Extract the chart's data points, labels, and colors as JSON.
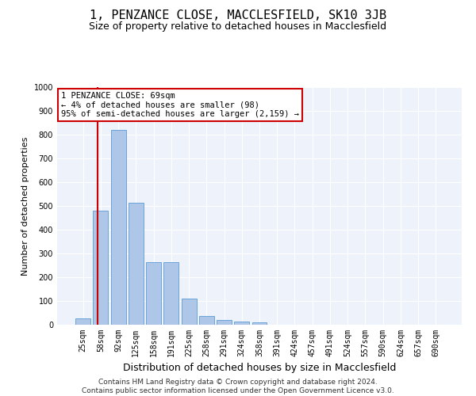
{
  "title": "1, PENZANCE CLOSE, MACCLESFIELD, SK10 3JB",
  "subtitle": "Size of property relative to detached houses in Macclesfield",
  "xlabel": "Distribution of detached houses by size in Macclesfield",
  "ylabel": "Number of detached properties",
  "footer_line1": "Contains HM Land Registry data © Crown copyright and database right 2024.",
  "footer_line2": "Contains public sector information licensed under the Open Government Licence v3.0.",
  "bar_labels": [
    "25sqm",
    "58sqm",
    "92sqm",
    "125sqm",
    "158sqm",
    "191sqm",
    "225sqm",
    "258sqm",
    "291sqm",
    "324sqm",
    "358sqm",
    "391sqm",
    "424sqm",
    "457sqm",
    "491sqm",
    "524sqm",
    "557sqm",
    "590sqm",
    "624sqm",
    "657sqm",
    "690sqm"
  ],
  "bar_values": [
    28,
    480,
    820,
    515,
    265,
    265,
    110,
    38,
    20,
    13,
    9,
    0,
    0,
    0,
    0,
    0,
    0,
    0,
    0,
    0,
    0
  ],
  "bar_color": "#aec6e8",
  "bar_edgecolor": "#5b9bd5",
  "bar_width": 0.85,
  "ylim": [
    0,
    1000
  ],
  "yticks": [
    0,
    100,
    200,
    300,
    400,
    500,
    600,
    700,
    800,
    900,
    1000
  ],
  "vline_color": "#cc0000",
  "vline_pos": 0.82,
  "annotation_text": "1 PENZANCE CLOSE: 69sqm\n← 4% of detached houses are smaller (98)\n95% of semi-detached houses are larger (2,159) →",
  "annotation_box_facecolor": "#ffffff",
  "annotation_box_edgecolor": "#cc0000",
  "background_color": "#eef2fa",
  "grid_color": "#ffffff",
  "title_fontsize": 11,
  "subtitle_fontsize": 9,
  "xlabel_fontsize": 9,
  "ylabel_fontsize": 8,
  "tick_fontsize": 7,
  "annotation_fontsize": 7.5,
  "footer_fontsize": 6.5
}
